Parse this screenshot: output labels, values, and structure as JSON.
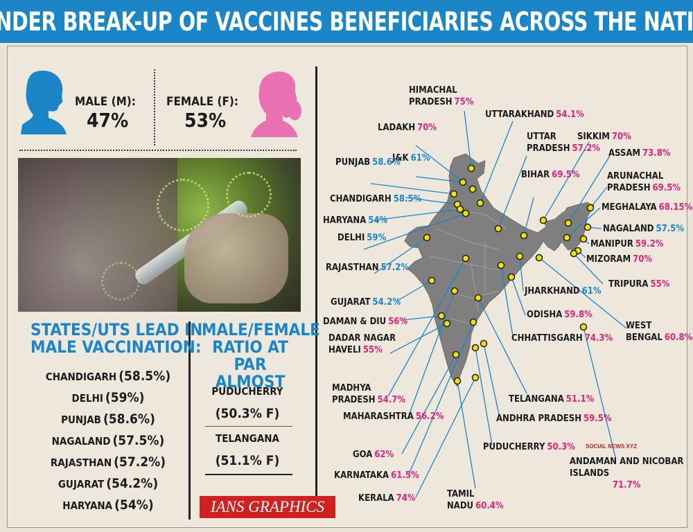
{
  "title": "GENDER BREAK-UP OF VACCINES BENEFICIARIES ACROSS THE NATION",
  "gender": {
    "male_label": "MALE (M):",
    "male_value": "47%",
    "female_label": "FEMALE (F):",
    "female_value": "53%",
    "male_color": "#1a86c8",
    "female_color": "#e870b3"
  },
  "male_lead": {
    "heading_line1": "STATES/UTS LEAD IN",
    "heading_line2": "MALE VACCINATION:",
    "items": [
      {
        "name": "CHANDIGARH",
        "value": "(58.5%)"
      },
      {
        "name": "DELHI",
        "value": "(59%)"
      },
      {
        "name": "PUNJAB",
        "value": "(58.6%)"
      },
      {
        "name": "NAGALAND",
        "value": "(57.5%)"
      },
      {
        "name": "RAJASTHAN",
        "value": "(57.2%)"
      },
      {
        "name": "GUJARAT",
        "value": "(54.2%)"
      },
      {
        "name": "HARYANA",
        "value": "(54%)"
      }
    ]
  },
  "par": {
    "heading_line1": "MALE/FEMALE",
    "heading_line2": "RATIO AT PAR",
    "heading_line3": "ALMOST",
    "items": [
      {
        "name": "PUDUCHERRY",
        "value": "(50.3% F)"
      },
      {
        "name": "TELANGANA",
        "value": "(51.1% F)"
      }
    ]
  },
  "credit": "IANS GRAPHICS",
  "watermark": "SOCIAL NEWS XYZ",
  "colors": {
    "male": "#1a86c8",
    "female": "#e0247b",
    "map": "#7f7f7f",
    "header": "#1a86c8"
  },
  "chart_data": {
    "type": "table",
    "title": "GENDER BREAK-UP OF VACCINES BENEFICIARIES ACROSS THE NATION",
    "overall": {
      "male": 47,
      "female": 53
    },
    "states": [
      {
        "name": "HIMACHAL PRADESH",
        "value": "75%",
        "gender": "F"
      },
      {
        "name": "UTTARAKHAND",
        "value": "54.1%",
        "gender": "F"
      },
      {
        "name": "LADAKH",
        "value": "70%",
        "gender": "F"
      },
      {
        "name": "UTTAR PRADESH",
        "value": "57.2%",
        "gender": "F"
      },
      {
        "name": "SIKKIM",
        "value": "70%",
        "gender": "F"
      },
      {
        "name": "J&K",
        "value": "61%",
        "gender": "M"
      },
      {
        "name": "ASSAM",
        "value": "73.8%",
        "gender": "F"
      },
      {
        "name": "PUNJAB",
        "value": "58.6%",
        "gender": "M"
      },
      {
        "name": "BIHAR",
        "value": "69.5%",
        "gender": "F"
      },
      {
        "name": "ARUNACHAL PRADESH",
        "value": "69.5%",
        "gender": "F"
      },
      {
        "name": "CHANDIGARH",
        "value": "58.5%",
        "gender": "M"
      },
      {
        "name": "MEGHALAYA",
        "value": "68.15%",
        "gender": "F"
      },
      {
        "name": "HARYANA",
        "value": "54%",
        "gender": "M"
      },
      {
        "name": "NAGALAND",
        "value": "57.5%",
        "gender": "M"
      },
      {
        "name": "DELHI",
        "value": "59%",
        "gender": "M"
      },
      {
        "name": "MANIPUR",
        "value": "59.2%",
        "gender": "F"
      },
      {
        "name": "MIZORAM",
        "value": "70%",
        "gender": "F"
      },
      {
        "name": "RAJASTHAN",
        "value": "57.2%",
        "gender": "M"
      },
      {
        "name": "TRIPURA",
        "value": "55%",
        "gender": "F"
      },
      {
        "name": "GUJARAT",
        "value": "54.2%",
        "gender": "M"
      },
      {
        "name": "JHARKHAND",
        "value": "61%",
        "gender": "M"
      },
      {
        "name": "DAMAN & DIU",
        "value": "56%",
        "gender": "F"
      },
      {
        "name": "ODISHA",
        "value": "59.8%",
        "gender": "F"
      },
      {
        "name": "WEST BENGAL",
        "value": "60.8%",
        "gender": "F"
      },
      {
        "name": "DADAR NAGAR HAVELI",
        "value": "55%",
        "gender": "F"
      },
      {
        "name": "CHHATTISGARH",
        "value": "74.3%",
        "gender": "F"
      },
      {
        "name": "MADHYA PRADESH",
        "value": "54.7%",
        "gender": "F"
      },
      {
        "name": "TELANGANA",
        "value": "51.1%",
        "gender": "F"
      },
      {
        "name": "MAHARASHTRA",
        "value": "56.2%",
        "gender": "F"
      },
      {
        "name": "ANDHRA PRADESH",
        "value": "59.5%",
        "gender": "F"
      },
      {
        "name": "GOA",
        "value": "62%",
        "gender": "F"
      },
      {
        "name": "PUDUCHERRY",
        "value": "50.3%",
        "gender": "F"
      },
      {
        "name": "KARNATAKA",
        "value": "61.5%",
        "gender": "F"
      },
      {
        "name": "ANDAMAN AND NICOBAR ISLANDS",
        "value": "71.7%",
        "gender": "F"
      },
      {
        "name": "KERALA",
        "value": "74%",
        "gender": "F"
      },
      {
        "name": "TAMIL NADU",
        "value": "60.4%",
        "gender": "F"
      }
    ]
  }
}
